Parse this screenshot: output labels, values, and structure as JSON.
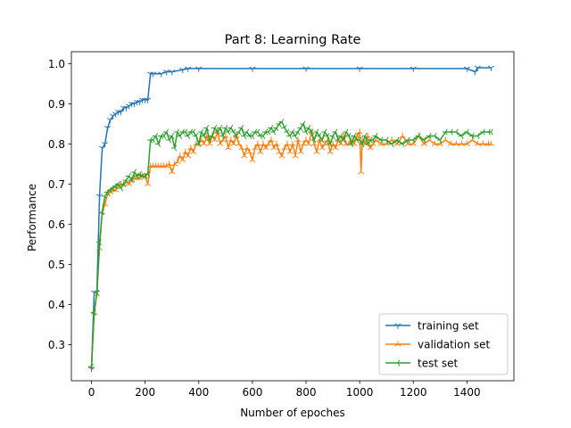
{
  "chart_data": {
    "type": "line",
    "title": "Part 8: Learning Rate",
    "xlabel": "Number of epoches",
    "ylabel": "Performance",
    "xlim": [
      -75,
      1575
    ],
    "ylim": [
      0.21,
      1.03
    ],
    "xticks": [
      0,
      200,
      400,
      600,
      800,
      1000,
      1200,
      1400
    ],
    "yticks": [
      0.3,
      0.4,
      0.5,
      0.6,
      0.7,
      0.8,
      0.9,
      1.0
    ],
    "ytick_labels": [
      "0.3",
      "0.4",
      "0.5",
      "0.6",
      "0.7",
      "0.8",
      "0.9",
      "1.0"
    ],
    "grid": false,
    "legend_position": "lower-right",
    "series": [
      {
        "name": "training set",
        "color": "#1f77b4",
        "marker": "tri_down",
        "points": [
          [
            0,
            0.24
          ],
          [
            10,
            0.43
          ],
          [
            20,
            0.43
          ],
          [
            30,
            0.67
          ],
          [
            40,
            0.79
          ],
          [
            50,
            0.8
          ],
          [
            60,
            0.84
          ],
          [
            70,
            0.86
          ],
          [
            80,
            0.87
          ],
          [
            90,
            0.875
          ],
          [
            100,
            0.88
          ],
          [
            110,
            0.88
          ],
          [
            120,
            0.89
          ],
          [
            130,
            0.89
          ],
          [
            140,
            0.895
          ],
          [
            150,
            0.9
          ],
          [
            160,
            0.9
          ],
          [
            170,
            0.905
          ],
          [
            180,
            0.905
          ],
          [
            190,
            0.91
          ],
          [
            200,
            0.91
          ],
          [
            210,
            0.91
          ],
          [
            220,
            0.975
          ],
          [
            230,
            0.975
          ],
          [
            260,
            0.975
          ],
          [
            280,
            0.98
          ],
          [
            300,
            0.98
          ],
          [
            340,
            0.985
          ],
          [
            360,
            0.988
          ],
          [
            400,
            0.988
          ],
          [
            600,
            0.988
          ],
          [
            800,
            0.988
          ],
          [
            1000,
            0.988
          ],
          [
            1200,
            0.988
          ],
          [
            1400,
            0.988
          ],
          [
            1430,
            0.98
          ],
          [
            1440,
            0.99
          ],
          [
            1490,
            0.99
          ]
        ]
      },
      {
        "name": "validation set",
        "color": "#ff7f0e",
        "marker": "tri_up",
        "points": [
          [
            0,
            0.245
          ],
          [
            10,
            0.38
          ],
          [
            20,
            0.425
          ],
          [
            30,
            0.54
          ],
          [
            40,
            0.63
          ],
          [
            50,
            0.65
          ],
          [
            60,
            0.675
          ],
          [
            70,
            0.68
          ],
          [
            80,
            0.685
          ],
          [
            90,
            0.685
          ],
          [
            100,
            0.695
          ],
          [
            110,
            0.7
          ],
          [
            120,
            0.7
          ],
          [
            130,
            0.705
          ],
          [
            140,
            0.7
          ],
          [
            150,
            0.71
          ],
          [
            160,
            0.715
          ],
          [
            170,
            0.715
          ],
          [
            180,
            0.715
          ],
          [
            190,
            0.72
          ],
          [
            200,
            0.72
          ],
          [
            210,
            0.7
          ],
          [
            220,
            0.745
          ],
          [
            230,
            0.745
          ],
          [
            240,
            0.745
          ],
          [
            250,
            0.745
          ],
          [
            260,
            0.745
          ],
          [
            270,
            0.745
          ],
          [
            280,
            0.745
          ],
          [
            290,
            0.75
          ],
          [
            300,
            0.73
          ],
          [
            310,
            0.75
          ],
          [
            320,
            0.755
          ],
          [
            330,
            0.77
          ],
          [
            340,
            0.76
          ],
          [
            350,
            0.78
          ],
          [
            360,
            0.77
          ],
          [
            370,
            0.79
          ],
          [
            380,
            0.78
          ],
          [
            390,
            0.8
          ],
          [
            400,
            0.8
          ],
          [
            410,
            0.81
          ],
          [
            420,
            0.8
          ],
          [
            430,
            0.82
          ],
          [
            440,
            0.8
          ],
          [
            450,
            0.82
          ],
          [
            460,
            0.81
          ],
          [
            470,
            0.83
          ],
          [
            480,
            0.8
          ],
          [
            490,
            0.81
          ],
          [
            500,
            0.82
          ],
          [
            510,
            0.79
          ],
          [
            520,
            0.81
          ],
          [
            530,
            0.8
          ],
          [
            540,
            0.82
          ],
          [
            550,
            0.8
          ],
          [
            560,
            0.79
          ],
          [
            570,
            0.77
          ],
          [
            580,
            0.79
          ],
          [
            590,
            0.78
          ],
          [
            600,
            0.76
          ],
          [
            610,
            0.79
          ],
          [
            620,
            0.8
          ],
          [
            630,
            0.78
          ],
          [
            640,
            0.8
          ],
          [
            650,
            0.79
          ],
          [
            660,
            0.8
          ],
          [
            670,
            0.81
          ],
          [
            680,
            0.79
          ],
          [
            690,
            0.8
          ],
          [
            700,
            0.78
          ],
          [
            710,
            0.77
          ],
          [
            720,
            0.79
          ],
          [
            730,
            0.8
          ],
          [
            740,
            0.78
          ],
          [
            750,
            0.8
          ],
          [
            760,
            0.77
          ],
          [
            770,
            0.81
          ],
          [
            780,
            0.78
          ],
          [
            790,
            0.8
          ],
          [
            800,
            0.81
          ],
          [
            810,
            0.8
          ],
          [
            820,
            0.83
          ],
          [
            830,
            0.8
          ],
          [
            840,
            0.78
          ],
          [
            850,
            0.81
          ],
          [
            860,
            0.79
          ],
          [
            870,
            0.8
          ],
          [
            880,
            0.81
          ],
          [
            890,
            0.78
          ],
          [
            900,
            0.8
          ],
          [
            910,
            0.79
          ],
          [
            920,
            0.81
          ],
          [
            930,
            0.8
          ],
          [
            940,
            0.82
          ],
          [
            950,
            0.8
          ],
          [
            960,
            0.8
          ],
          [
            970,
            0.81
          ],
          [
            980,
            0.8
          ],
          [
            990,
            0.82
          ],
          [
            1000,
            0.83
          ],
          [
            1005,
            0.73
          ],
          [
            1010,
            0.81
          ],
          [
            1020,
            0.8
          ],
          [
            1030,
            0.82
          ],
          [
            1040,
            0.79
          ],
          [
            1050,
            0.8
          ],
          [
            1060,
            0.81
          ],
          [
            1080,
            0.8
          ],
          [
            1100,
            0.8
          ],
          [
            1120,
            0.81
          ],
          [
            1140,
            0.8
          ],
          [
            1160,
            0.82
          ],
          [
            1180,
            0.8
          ],
          [
            1200,
            0.8
          ],
          [
            1220,
            0.82
          ],
          [
            1240,
            0.8
          ],
          [
            1260,
            0.81
          ],
          [
            1280,
            0.8
          ],
          [
            1300,
            0.8
          ],
          [
            1320,
            0.81
          ],
          [
            1340,
            0.8
          ],
          [
            1360,
            0.8
          ],
          [
            1380,
            0.8
          ],
          [
            1400,
            0.8
          ],
          [
            1420,
            0.81
          ],
          [
            1440,
            0.8
          ],
          [
            1460,
            0.8
          ],
          [
            1480,
            0.8
          ],
          [
            1490,
            0.8
          ]
        ]
      },
      {
        "name": "test set",
        "color": "#2ca02c",
        "marker": "tri_left",
        "points": [
          [
            0,
            0.245
          ],
          [
            10,
            0.38
          ],
          [
            20,
            0.43
          ],
          [
            30,
            0.555
          ],
          [
            40,
            0.63
          ],
          [
            50,
            0.67
          ],
          [
            60,
            0.68
          ],
          [
            70,
            0.685
          ],
          [
            80,
            0.69
          ],
          [
            90,
            0.695
          ],
          [
            100,
            0.7
          ],
          [
            110,
            0.69
          ],
          [
            120,
            0.7
          ],
          [
            130,
            0.71
          ],
          [
            140,
            0.72
          ],
          [
            150,
            0.71
          ],
          [
            160,
            0.73
          ],
          [
            170,
            0.72
          ],
          [
            180,
            0.725
          ],
          [
            190,
            0.72
          ],
          [
            200,
            0.72
          ],
          [
            210,
            0.725
          ],
          [
            220,
            0.81
          ],
          [
            230,
            0.81
          ],
          [
            240,
            0.82
          ],
          [
            250,
            0.8
          ],
          [
            260,
            0.82
          ],
          [
            270,
            0.82
          ],
          [
            280,
            0.83
          ],
          [
            290,
            0.81
          ],
          [
            300,
            0.82
          ],
          [
            310,
            0.79
          ],
          [
            320,
            0.83
          ],
          [
            330,
            0.82
          ],
          [
            340,
            0.83
          ],
          [
            350,
            0.83
          ],
          [
            360,
            0.82
          ],
          [
            370,
            0.83
          ],
          [
            380,
            0.83
          ],
          [
            390,
            0.82
          ],
          [
            400,
            0.8
          ],
          [
            410,
            0.83
          ],
          [
            420,
            0.82
          ],
          [
            430,
            0.84
          ],
          [
            440,
            0.81
          ],
          [
            450,
            0.82
          ],
          [
            460,
            0.84
          ],
          [
            470,
            0.83
          ],
          [
            480,
            0.84
          ],
          [
            490,
            0.82
          ],
          [
            500,
            0.84
          ],
          [
            510,
            0.83
          ],
          [
            520,
            0.84
          ],
          [
            530,
            0.83
          ],
          [
            540,
            0.82
          ],
          [
            550,
            0.83
          ],
          [
            560,
            0.84
          ],
          [
            570,
            0.82
          ],
          [
            580,
            0.83
          ],
          [
            590,
            0.82
          ],
          [
            600,
            0.82
          ],
          [
            610,
            0.83
          ],
          [
            620,
            0.83
          ],
          [
            630,
            0.82
          ],
          [
            640,
            0.82
          ],
          [
            650,
            0.83
          ],
          [
            660,
            0.83
          ],
          [
            670,
            0.84
          ],
          [
            680,
            0.83
          ],
          [
            690,
            0.84
          ],
          [
            700,
            0.85
          ],
          [
            710,
            0.855
          ],
          [
            720,
            0.84
          ],
          [
            730,
            0.83
          ],
          [
            740,
            0.82
          ],
          [
            750,
            0.83
          ],
          [
            760,
            0.82
          ],
          [
            770,
            0.83
          ],
          [
            780,
            0.84
          ],
          [
            790,
            0.85
          ],
          [
            800,
            0.83
          ],
          [
            810,
            0.84
          ],
          [
            820,
            0.83
          ],
          [
            830,
            0.81
          ],
          [
            840,
            0.83
          ],
          [
            850,
            0.82
          ],
          [
            860,
            0.81
          ],
          [
            870,
            0.83
          ],
          [
            880,
            0.82
          ],
          [
            890,
            0.8
          ],
          [
            900,
            0.82
          ],
          [
            910,
            0.83
          ],
          [
            920,
            0.81
          ],
          [
            930,
            0.82
          ],
          [
            940,
            0.81
          ],
          [
            950,
            0.83
          ],
          [
            960,
            0.82
          ],
          [
            970,
            0.8
          ],
          [
            980,
            0.82
          ],
          [
            990,
            0.81
          ],
          [
            1000,
            0.81
          ],
          [
            1010,
            0.8
          ],
          [
            1020,
            0.82
          ],
          [
            1030,
            0.8
          ],
          [
            1040,
            0.81
          ],
          [
            1050,
            0.81
          ],
          [
            1060,
            0.82
          ],
          [
            1080,
            0.81
          ],
          [
            1100,
            0.81
          ],
          [
            1120,
            0.8
          ],
          [
            1140,
            0.81
          ],
          [
            1160,
            0.8
          ],
          [
            1180,
            0.81
          ],
          [
            1200,
            0.81
          ],
          [
            1220,
            0.82
          ],
          [
            1240,
            0.81
          ],
          [
            1260,
            0.82
          ],
          [
            1280,
            0.82
          ],
          [
            1300,
            0.81
          ],
          [
            1320,
            0.83
          ],
          [
            1340,
            0.83
          ],
          [
            1360,
            0.83
          ],
          [
            1380,
            0.82
          ],
          [
            1400,
            0.83
          ],
          [
            1420,
            0.82
          ],
          [
            1440,
            0.82
          ],
          [
            1460,
            0.83
          ],
          [
            1480,
            0.83
          ],
          [
            1490,
            0.83
          ]
        ]
      }
    ]
  }
}
